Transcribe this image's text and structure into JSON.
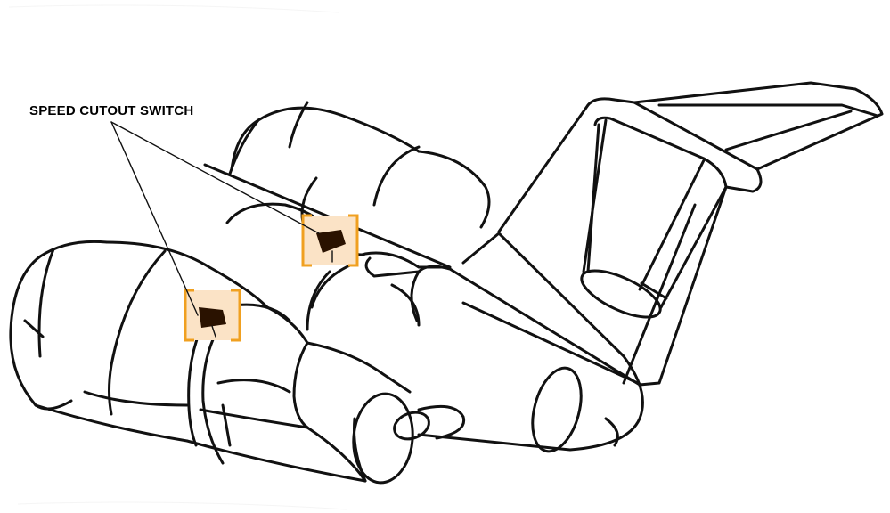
{
  "callout": {
    "label": "SPEED CUTOUT SWITCH"
  },
  "colors": {
    "highlight_fill": "#fbe3c6",
    "highlight_bracket": "#f0a020",
    "switch_fill": "#2a1200",
    "outline": "#111111"
  }
}
